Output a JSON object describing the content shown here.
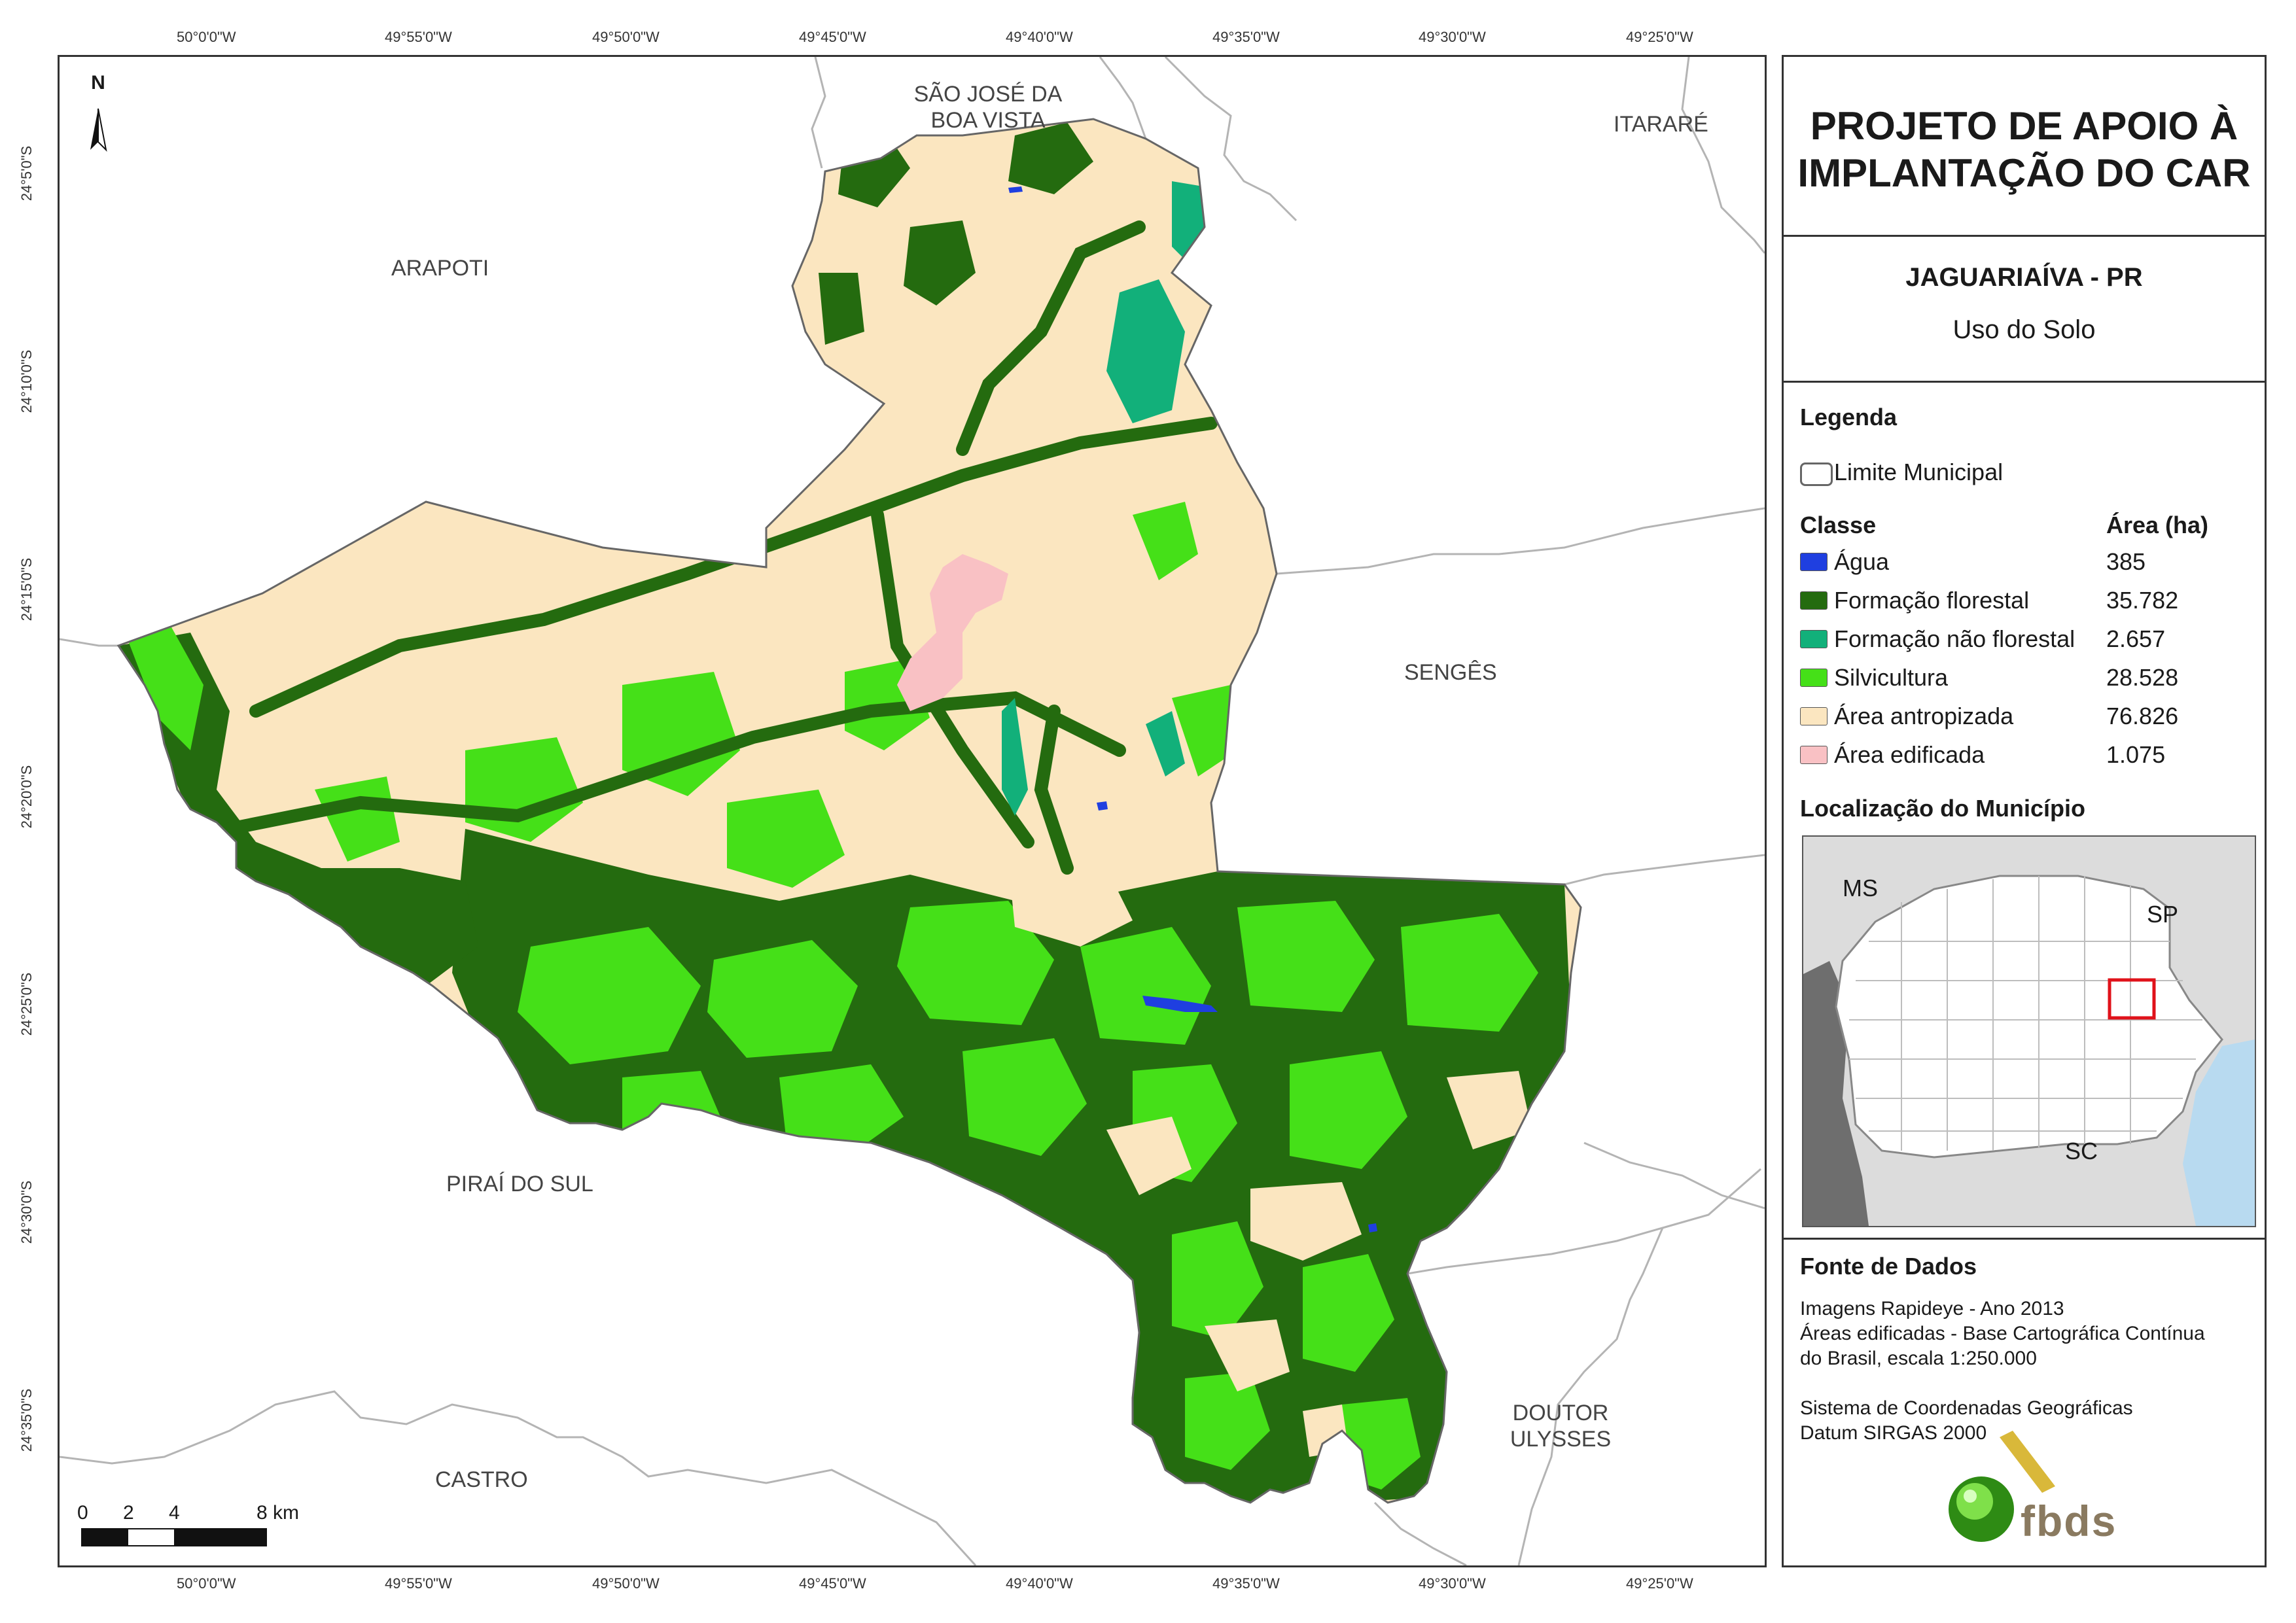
{
  "map": {
    "coords_top": [
      "50°0'0\"W",
      "49°55'0\"W",
      "49°50'0\"W",
      "49°45'0\"W",
      "49°40'0\"W",
      "49°35'0\"W",
      "49°30'0\"W",
      "49°25'0\"W"
    ],
    "coords_bottom": [
      "50°0'0\"W",
      "49°55'0\"W",
      "49°50'0\"W",
      "49°45'0\"W",
      "49°40'0\"W",
      "49°35'0\"W",
      "49°30'0\"W",
      "49°25'0\"W"
    ],
    "coords_left": [
      "24°5'0\"S",
      "24°10'0\"S",
      "24°15'0\"S",
      "24°20'0\"S",
      "24°25'0\"S",
      "24°30'0\"S",
      "24°35'0\"S"
    ],
    "places": {
      "sao_jose": [
        "SÃO JOSÉ DA",
        "BOA VISTA"
      ],
      "itarare": "ITARARÉ",
      "arapoti": "ARAPOTI",
      "senges": "SENGÊS",
      "pirai": "PIRAÍ DO SUL",
      "castro": "CASTRO",
      "doutor": [
        "DOUTOR",
        "ULYSSES"
      ]
    },
    "north_label": "N",
    "scale_labels": [
      "0",
      "2",
      "4",
      "8 km"
    ]
  },
  "panel": {
    "title_lines": [
      "PROJETO DE APOIO À",
      "IMPLANTAÇÃO DO CAR"
    ],
    "municipality": "JAGUARIAÍVA - PR",
    "subtitle": "Uso do Solo",
    "legend_title": "Legenda",
    "limit_label": "Limite Municipal",
    "class_header": "Classe",
    "area_header": "Área (ha)",
    "classes": [
      {
        "label": "Água",
        "area": "385",
        "color": "#1f3fe0"
      },
      {
        "label": "Formação florestal",
        "area": "35.782",
        "color": "#246b0f"
      },
      {
        "label": "Formação não florestal",
        "area": "2.657",
        "color": "#12b07a"
      },
      {
        "label": "Silvicultura",
        "area": "28.528",
        "color": "#45e018"
      },
      {
        "label": "Área antropizada",
        "area": "76.826",
        "color": "#fbe6c0"
      },
      {
        "label": "Área edificada",
        "area": "1.075",
        "color": "#f9c1c4"
      }
    ],
    "location_title": "Localização do Município",
    "inset_labels": {
      "ms": "MS",
      "sp": "SP",
      "sc": "SC"
    },
    "source_title": "Fonte de Dados",
    "source_lines": [
      "Imagens Rapideye - Ano 2013",
      "Áreas edificadas - Base Cartográfica Contínua",
      "do Brasil, escala 1:250.000",
      "",
      "Sistema de Coordenadas Geográficas",
      "Datum SIRGAS 2000"
    ],
    "logo_text": "fbds"
  }
}
